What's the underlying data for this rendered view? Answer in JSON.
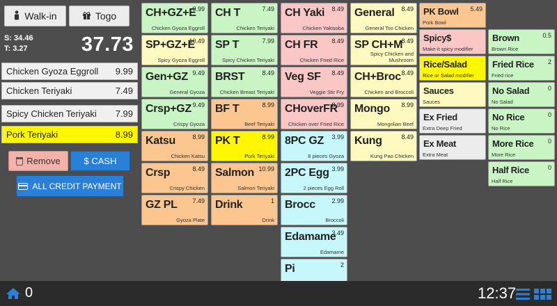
{
  "service": {
    "walkin": "Walk-in",
    "togo": "Togo"
  },
  "totals": {
    "subtotal": "S: 34.46",
    "tax": "T: 3.27",
    "total": "37.73"
  },
  "order": [
    {
      "name": "Chicken Gyoza Eggroll",
      "price": "9.99"
    },
    {
      "name": "Chicken Teriyaki",
      "price": "7.49"
    },
    {
      "name": "Spicy Chicken Teriyaki",
      "price": "7.99"
    },
    {
      "name": "Pork Teriyaki",
      "price": "8.99",
      "selected": true
    }
  ],
  "actions": {
    "remove": "Remove",
    "cash": "$ CASH",
    "credit": "ALL CREDIT PAYMENT"
  },
  "menu": {
    "col1": [
      {
        "t": "CH+GZ+E",
        "p": "9.99",
        "s": "Chicken Gyoza Eggroll",
        "c": "green"
      },
      {
        "t": "SP+GZ+E",
        "p": "10.49",
        "s": "Spicy Gyoza Eggroll",
        "c": "yellowc"
      },
      {
        "t": "Gen+GZ",
        "p": "9.49",
        "s": "General Gyoza",
        "c": "green"
      },
      {
        "t": "Crsp+GZ",
        "p": "9.49",
        "s": "Crispy Gyoza",
        "c": "green"
      },
      {
        "t": "Katsu",
        "p": "8.99",
        "s": "Chicken Katsu",
        "c": "orange"
      },
      {
        "t": "Crsp",
        "p": "8.49",
        "s": "Crispy Chicken",
        "c": "orange"
      },
      {
        "t": "GZ PL",
        "p": "7.49",
        "s": "Gyoza Plate",
        "c": "orange"
      }
    ],
    "col2": [
      {
        "t": "CH T",
        "p": "7.49",
        "s": "Chicken Teriyaki",
        "c": "green"
      },
      {
        "t": "SP T",
        "p": "7.99",
        "s": "Spicy Chicken Teriyaki",
        "c": "green"
      },
      {
        "t": "BRST",
        "p": "8.49",
        "s": "Chicken Breast Teriyaki",
        "c": "green"
      },
      {
        "t": "BF T",
        "p": "8.99",
        "s": "Beef Teriyaki",
        "c": "orange"
      },
      {
        "t": "PK T",
        "p": "8.99",
        "s": "Pork Teriyaki",
        "c": "yellowhi"
      },
      {
        "t": "Salmon",
        "p": "10.99",
        "s": "Salmon Teriyaki",
        "c": "orange"
      },
      {
        "t": "Drink",
        "p": "1",
        "s": "Drink",
        "c": "orange"
      }
    ],
    "col3": [
      {
        "t": "CH Yaki",
        "p": "8.49",
        "s": "Chicken Yakisoba",
        "c": "pink"
      },
      {
        "t": "CH FR",
        "p": "8.49",
        "s": "Chicken Fried Rice",
        "c": "pink"
      },
      {
        "t": "Veg SF",
        "p": "8.49",
        "s": "Veggie Stir Fry",
        "c": "pink"
      },
      {
        "t": "CHoverFR",
        "p": "8.99",
        "s": "Chicken over Fried Rice",
        "c": "pink"
      },
      {
        "t": "8PC GZ",
        "p": "3.99",
        "s": "8 pieces Gyoza",
        "c": "cyan"
      },
      {
        "t": "2PC Egg",
        "p": "3.99",
        "s": "2 pieces Egg Roll",
        "c": "cyan"
      },
      {
        "t": "Brocc",
        "p": "2.99",
        "s": "Broccoli",
        "c": "cyan"
      },
      {
        "t": "Edamame",
        "p": "3.49",
        "s": "Edamame",
        "c": "cyan"
      },
      {
        "t": "Pi",
        "p": "2",
        "s": "",
        "c": "cyan"
      }
    ],
    "col4": [
      {
        "t": "General",
        "p": "8.49",
        "s": "General Tso Chicken",
        "c": "yellowc"
      },
      {
        "t": "SP CH+M",
        "p": "8.49",
        "s": "Spicy Chicken and Mushroom",
        "c": "yellowc"
      },
      {
        "t": "CH+Broc",
        "p": "8.49",
        "s": "Chicken and Broccoli",
        "c": "yellowc"
      },
      {
        "t": "Mongo",
        "p": "8.99",
        "s": "Mongolian Beef",
        "c": "yellowc"
      },
      {
        "t": "Kung",
        "p": "8.49",
        "s": "Kung Pao Chicken",
        "c": "yellowc"
      }
    ],
    "col5": [
      {
        "t": "PK Bowl",
        "p": "5.49",
        "s": "Pork Bowl",
        "c": "orange"
      },
      {
        "t": "Spicy$",
        "p": "",
        "s": "Make-it spicy modifier",
        "c": "pink"
      },
      {
        "t": "Rice/Salad",
        "p": "",
        "s": "Rice or Salad modifier",
        "c": "yellowhi"
      },
      {
        "t": "Sauces",
        "p": "",
        "s": "Sauces",
        "c": "yellowc"
      },
      {
        "t": "Ex Fried",
        "p": "",
        "s": "Extra Deep Fried",
        "c": "gray"
      },
      {
        "t": "Ex Meat",
        "p": "",
        "s": "Extra Meat",
        "c": "gray"
      }
    ],
    "col6": [
      {
        "t": "Brown",
        "p": "0.5",
        "s": "Brown Rice",
        "c": "green"
      },
      {
        "t": "Fried Rice",
        "p": "2",
        "s": "Fried rice",
        "c": "green"
      },
      {
        "t": "No Salad",
        "p": "0",
        "s": "No Salad",
        "c": "green"
      },
      {
        "t": "No Rice",
        "p": "0",
        "s": "No Rice",
        "c": "green"
      },
      {
        "t": "More Rice",
        "p": "0",
        "s": "More Rice",
        "c": "green"
      },
      {
        "t": "Half Rice",
        "p": "0",
        "s": "Half Rice",
        "c": "green"
      }
    ]
  },
  "footer": {
    "count": "0",
    "time": "12:37"
  }
}
